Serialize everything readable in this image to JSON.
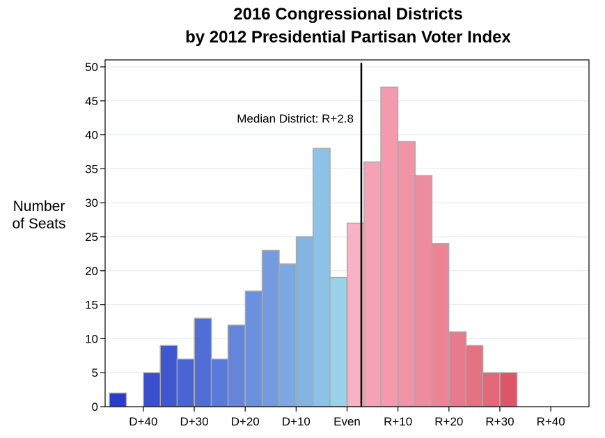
{
  "chart_data": {
    "type": "bar",
    "title_line1": "2016 Congressional Districts",
    "title_line2": "by 2012 Presidential Partisan Voter Index",
    "ylabel_line1": "Number",
    "ylabel_line2": "of Seats",
    "xlabel": "",
    "ylim": [
      0,
      50
    ],
    "y_ticks": [
      0,
      5,
      10,
      15,
      20,
      25,
      30,
      35,
      40,
      45,
      50
    ],
    "xlim": [
      -47.5,
      47.5
    ],
    "x_ticks": [
      -40,
      -30,
      -20,
      -10,
      0,
      10,
      20,
      30,
      40
    ],
    "x_tick_labels": [
      "D+40",
      "D+30",
      "D+20",
      "D+10",
      "Even",
      "R+10",
      "R+20",
      "R+30",
      "R+40"
    ],
    "bin_width": 3.333,
    "bins": [
      {
        "center": -45.0,
        "value": 2,
        "color": "#2a3cc8"
      },
      {
        "center": -41.7,
        "value": 0,
        "color": "#3344cc"
      },
      {
        "center": -38.3,
        "value": 5,
        "color": "#3a4ece"
      },
      {
        "center": -35.0,
        "value": 9,
        "color": "#4157d0"
      },
      {
        "center": -31.7,
        "value": 7,
        "color": "#4a64d3"
      },
      {
        "center": -28.3,
        "value": 13,
        "color": "#506ed6"
      },
      {
        "center": -25.0,
        "value": 7,
        "color": "#5a7ad9"
      },
      {
        "center": -21.7,
        "value": 12,
        "color": "#6485db"
      },
      {
        "center": -18.3,
        "value": 17,
        "color": "#6b90dd"
      },
      {
        "center": -15.0,
        "value": 23,
        "color": "#749bdf"
      },
      {
        "center": -11.7,
        "value": 21,
        "color": "#7ca8e0"
      },
      {
        "center": -8.3,
        "value": 25,
        "color": "#84b4e2"
      },
      {
        "center": -5.0,
        "value": 38,
        "color": "#8cc2e5"
      },
      {
        "center": -1.7,
        "value": 19,
        "color": "#98d3ea"
      },
      {
        "center": 1.7,
        "value": 27,
        "color": "#f8b2c6"
      },
      {
        "center": 5.0,
        "value": 36,
        "color": "#f7a1b6"
      },
      {
        "center": 8.3,
        "value": 47,
        "color": "#f59aae"
      },
      {
        "center": 11.7,
        "value": 39,
        "color": "#f193a7"
      },
      {
        "center": 15.0,
        "value": 34,
        "color": "#ee8c9f"
      },
      {
        "center": 18.3,
        "value": 24,
        "color": "#ec8496"
      },
      {
        "center": 21.7,
        "value": 11,
        "color": "#e87a8d"
      },
      {
        "center": 25.0,
        "value": 9,
        "color": "#e57183"
      },
      {
        "center": 28.3,
        "value": 5,
        "color": "#e2687a"
      },
      {
        "center": 31.7,
        "value": 5,
        "color": "#dd5566"
      }
    ],
    "median_x": 2.8,
    "annotation": "Median District: R+2.8",
    "bar_edge_color": "#a9a9a9",
    "grid_color": "#dfe8ee",
    "legend": "none"
  }
}
